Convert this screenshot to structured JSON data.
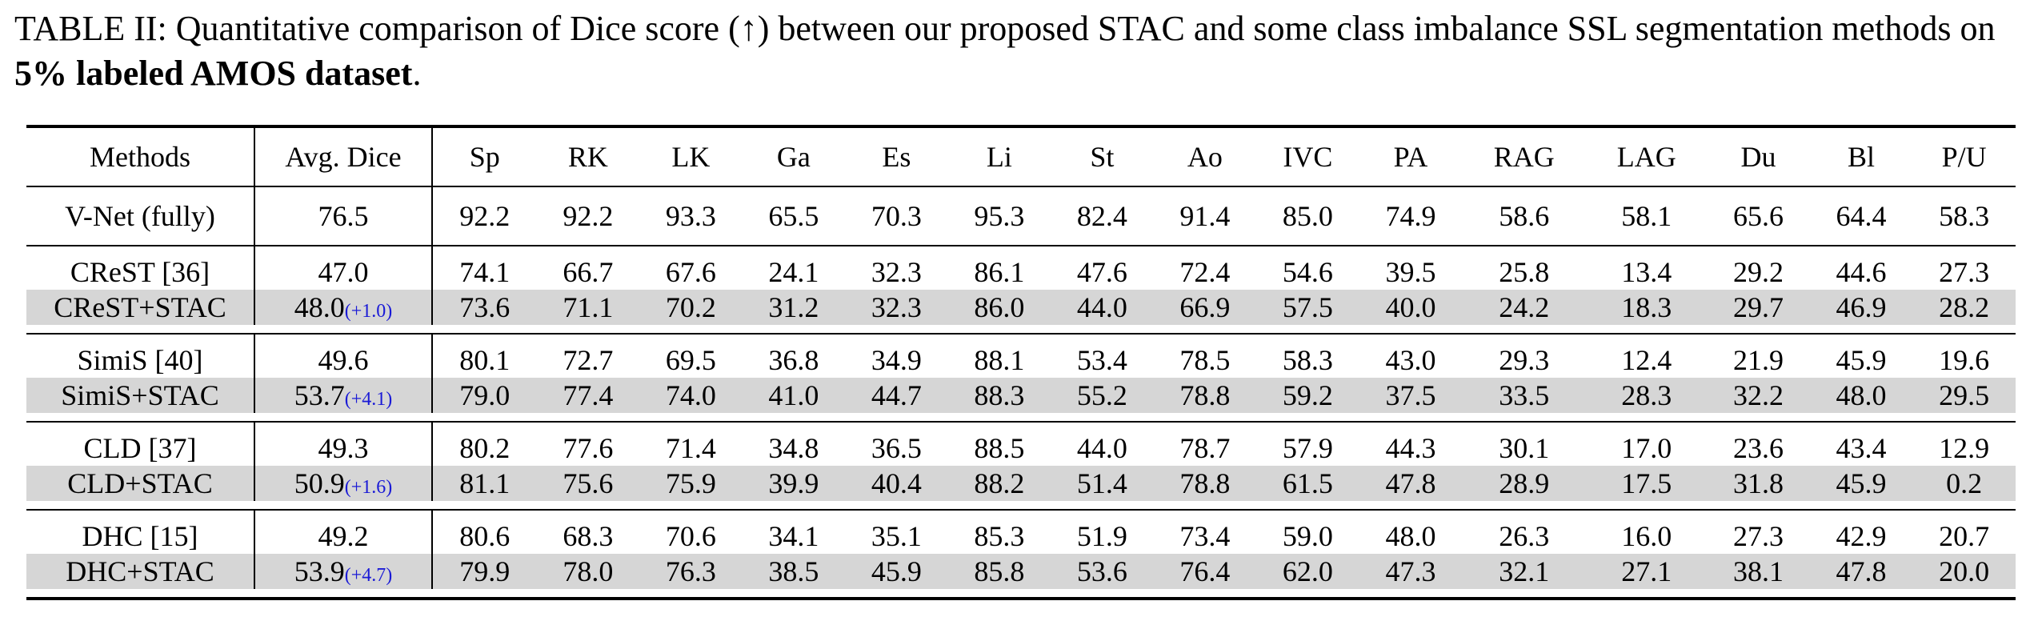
{
  "caption": {
    "prefix": "TABLE II: Quantitative comparison of Dice score (↑) between our proposed STAC and some class imbalance SSL segmentation methods on ",
    "bold": "5% labeled AMOS dataset",
    "suffix": "."
  },
  "table": {
    "headers": [
      "Methods",
      "Avg. Dice",
      "Sp",
      "RK",
      "LK",
      "Ga",
      "Es",
      "Li",
      "St",
      "Ao",
      "IVC",
      "PA",
      "RAG",
      "LAG",
      "Du",
      "Bl",
      "P/U"
    ],
    "baseline": {
      "method": "V-Net (fully)",
      "avg": "76.5",
      "values": [
        "92.2",
        "92.2",
        "93.3",
        "65.5",
        "70.3",
        "95.3",
        "82.4",
        "91.4",
        "85.0",
        "74.9",
        "58.6",
        "58.1",
        "65.6",
        "64.4",
        "58.3"
      ]
    },
    "groups": [
      {
        "base": {
          "method": "CReST [36]",
          "avg": "47.0",
          "values": [
            "74.1",
            "66.7",
            "67.6",
            "24.1",
            "32.3",
            "86.1",
            "47.6",
            "72.4",
            "54.6",
            "39.5",
            "25.8",
            "13.4",
            "29.2",
            "44.6",
            "27.3"
          ]
        },
        "stac": {
          "method": "CReST+STAC",
          "avg": "48.0",
          "delta": "(+1.0)",
          "values": [
            "73.6",
            "71.1",
            "70.2",
            "31.2",
            "32.3",
            "86.0",
            "44.0",
            "66.9",
            "57.5",
            "40.0",
            "24.2",
            "18.3",
            "29.7",
            "46.9",
            "28.2"
          ]
        }
      },
      {
        "base": {
          "method": "SimiS [40]",
          "avg": "49.6",
          "values": [
            "80.1",
            "72.7",
            "69.5",
            "36.8",
            "34.9",
            "88.1",
            "53.4",
            "78.5",
            "58.3",
            "43.0",
            "29.3",
            "12.4",
            "21.9",
            "45.9",
            "19.6"
          ]
        },
        "stac": {
          "method": "SimiS+STAC",
          "avg": "53.7",
          "delta": "(+4.1)",
          "values": [
            "79.0",
            "77.4",
            "74.0",
            "41.0",
            "44.7",
            "88.3",
            "55.2",
            "78.8",
            "59.2",
            "37.5",
            "33.5",
            "28.3",
            "32.2",
            "48.0",
            "29.5"
          ]
        }
      },
      {
        "base": {
          "method": "CLD [37]",
          "avg": "49.3",
          "values": [
            "80.2",
            "77.6",
            "71.4",
            "34.8",
            "36.5",
            "88.5",
            "44.0",
            "78.7",
            "57.9",
            "44.3",
            "30.1",
            "17.0",
            "23.6",
            "43.4",
            "12.9"
          ]
        },
        "stac": {
          "method": "CLD+STAC",
          "avg": "50.9",
          "delta": "(+1.6)",
          "values": [
            "81.1",
            "75.6",
            "75.9",
            "39.9",
            "40.4",
            "88.2",
            "51.4",
            "78.8",
            "61.5",
            "47.8",
            "28.9",
            "17.5",
            "31.8",
            "45.9",
            "0.2"
          ]
        }
      },
      {
        "base": {
          "method": "DHC [15]",
          "avg": "49.2",
          "values": [
            "80.6",
            "68.3",
            "70.6",
            "34.1",
            "35.1",
            "85.3",
            "51.9",
            "73.4",
            "59.0",
            "48.0",
            "26.3",
            "16.0",
            "27.3",
            "42.9",
            "20.7"
          ]
        },
        "stac": {
          "method": "DHC+STAC",
          "avg": "53.9",
          "delta": "(+4.7)",
          "values": [
            "79.9",
            "78.0",
            "76.3",
            "38.5",
            "45.9",
            "85.8",
            "53.6",
            "76.4",
            "62.0",
            "47.3",
            "32.1",
            "27.1",
            "38.1",
            "47.8",
            "20.0"
          ]
        }
      }
    ]
  }
}
